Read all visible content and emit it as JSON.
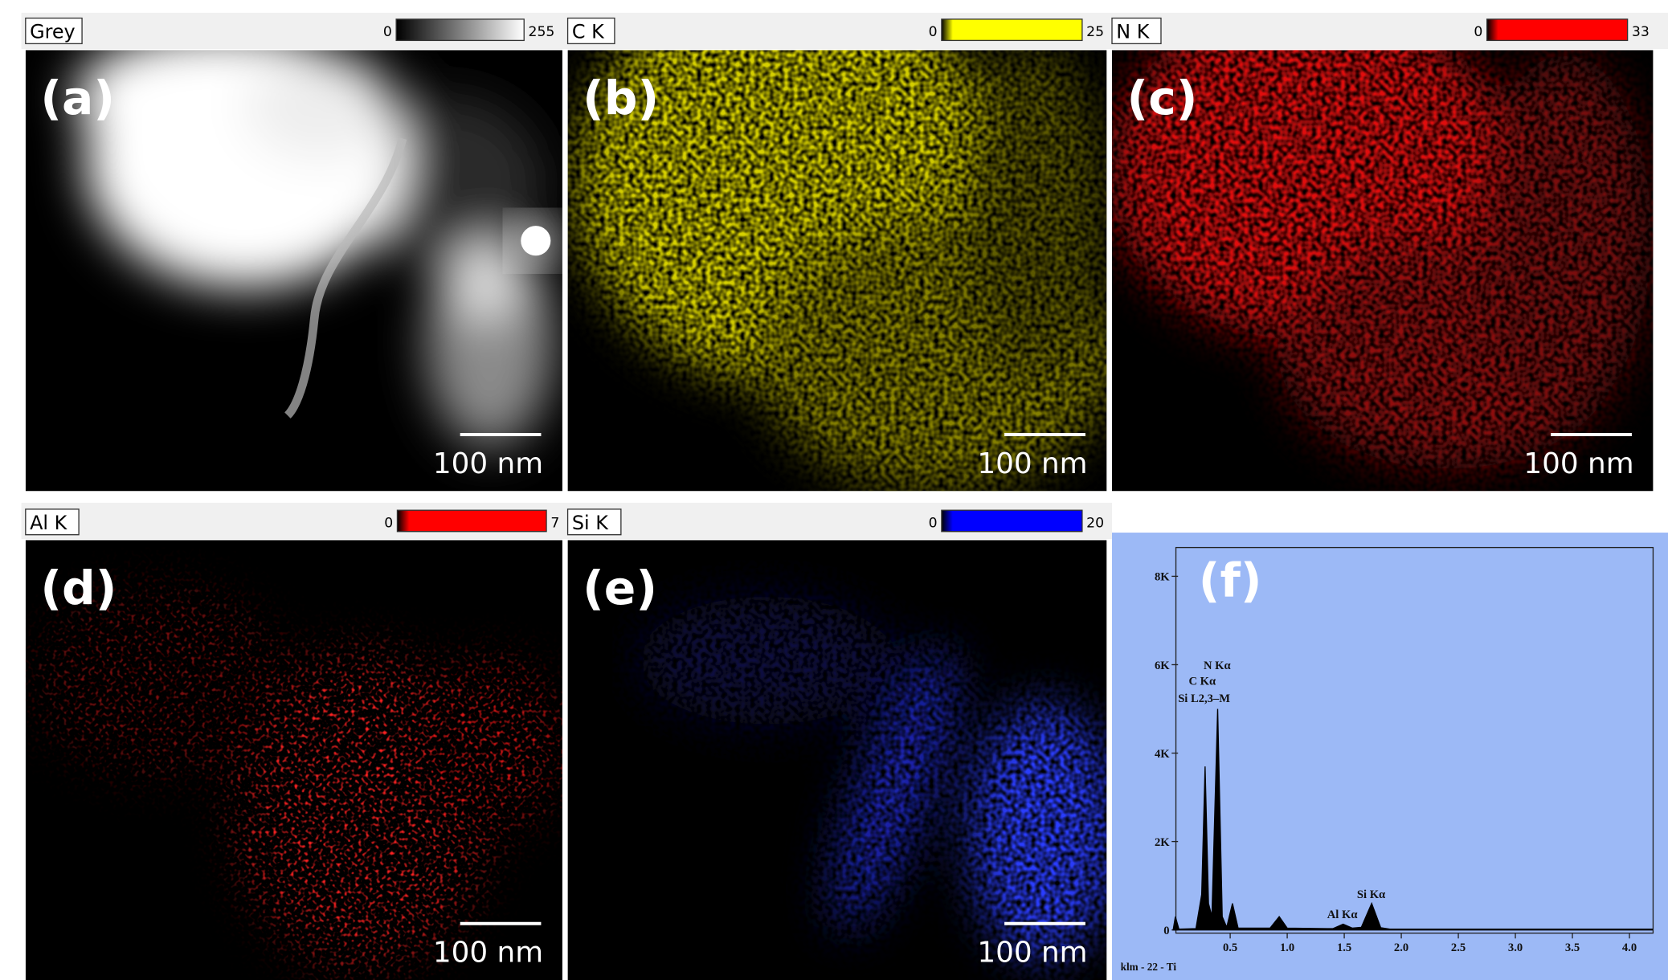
{
  "panels": [
    {
      "header": "Grey",
      "min": 0,
      "max": 255,
      "label": "(a)",
      "scale_bar": "100 nm"
    },
    {
      "header": "C K",
      "min": 0,
      "max": 25,
      "label": "(b)",
      "scale_bar": "100 nm"
    },
    {
      "header": "N K",
      "min": 0,
      "max": 33,
      "label": "(c)",
      "scale_bar": "100 nm"
    },
    {
      "header": "Al K",
      "min": 0,
      "max": 7,
      "label": "(d)",
      "scale_bar": "100 nm"
    },
    {
      "header": "Si K",
      "min": 0,
      "max": 20,
      "label": "(e)",
      "scale_bar": "100 nm"
    }
  ],
  "spectrum": {
    "label": "(f)",
    "xlim": [
      0,
      4.2
    ],
    "ylim": [
      0,
      8700
    ],
    "xticks": [
      0.5,
      {
        "value": 1,
        "label": "1.0"
      },
      1.5,
      {
        "value": 2,
        "label": "2.0"
      },
      2.5,
      {
        "value": 3,
        "label": "3.0"
      },
      3.5,
      {
        "value": 4,
        "label": "4.0"
      }
    ],
    "yticks": [
      {
        "value": 0,
        "label": "0"
      },
      {
        "value": 2000,
        "label": "2K"
      },
      {
        "value": 4000,
        "label": "4K"
      },
      {
        "value": 6000,
        "label": "6K"
      },
      {
        "value": 8000,
        "label": "8K"
      }
    ],
    "x": [
      0,
      0.02,
      0.05,
      0.2,
      0.25,
      0.28,
      0.31,
      0.34,
      0.39,
      0.43,
      0.47,
      0.52,
      0.57,
      0.85,
      0.93,
      1.0,
      1.4,
      1.49,
      1.57,
      1.65,
      1.74,
      1.82,
      1.9,
      4.2
    ],
    "y": [
      0,
      300,
      20,
      30,
      800,
      3700,
      600,
      300,
      5000,
      300,
      60,
      600,
      40,
      40,
      300,
      40,
      30,
      130,
      40,
      60,
      600,
      50,
      20,
      20
    ],
    "peak_labels": [
      "N Kα",
      "C Kα",
      "Si L2,3–M",
      "Al Kα",
      "Si Kα"
    ],
    "footer": "klm - 22 - Ti"
  }
}
